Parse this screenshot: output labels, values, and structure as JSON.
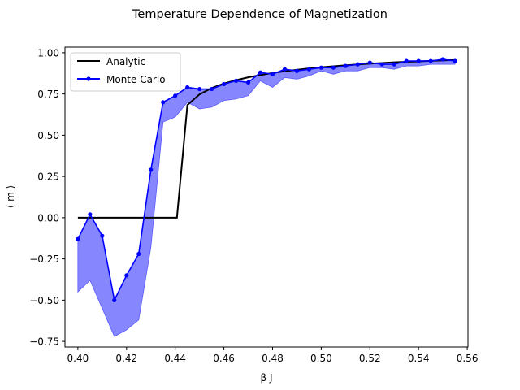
{
  "chart_data": {
    "type": "line",
    "title": "Temperature Dependence of Magnetization",
    "xlabel": "β J",
    "ylabel": "⟨ m ⟩",
    "xlim": [
      0.3947,
      0.5603
    ],
    "ylim": [
      -0.784,
      1.034
    ],
    "xticks": [
      0.4,
      0.42,
      0.44,
      0.46,
      0.48,
      0.5,
      0.52,
      0.54,
      0.56
    ],
    "xtick_labels": [
      "0.40",
      "0.42",
      "0.44",
      "0.46",
      "0.48",
      "0.50",
      "0.52",
      "0.54",
      "0.56"
    ],
    "yticks": [
      -0.75,
      -0.5,
      -0.25,
      0.0,
      0.25,
      0.5,
      0.75,
      1.0
    ],
    "ytick_labels": [
      "−0.75",
      "−0.50",
      "−0.25",
      "0.00",
      "0.25",
      "0.50",
      "0.75",
      "1.00"
    ],
    "grid": false,
    "legend": {
      "position": "top-left",
      "entries": [
        "Analytic",
        "Monte Carlo"
      ]
    },
    "colors": {
      "analytic": "#000000",
      "monte_carlo": "#0000ff",
      "band": "#8080ff"
    },
    "series": [
      {
        "name": "Analytic",
        "style": "line",
        "x": [
          0.4,
          0.4407,
          0.445,
          0.45,
          0.455,
          0.46,
          0.465,
          0.47,
          0.475,
          0.48,
          0.485,
          0.49,
          0.495,
          0.5,
          0.505,
          0.51,
          0.515,
          0.52,
          0.525,
          0.53,
          0.535,
          0.54,
          0.545,
          0.55,
          0.555
        ],
        "y": [
          0.0,
          0.0,
          0.683,
          0.748,
          0.786,
          0.813,
          0.834,
          0.851,
          0.865,
          0.877,
          0.888,
          0.897,
          0.905,
          0.912,
          0.918,
          0.924,
          0.929,
          0.934,
          0.938,
          0.942,
          0.945,
          0.948,
          0.951,
          0.954,
          0.956
        ]
      },
      {
        "name": "Monte Carlo",
        "style": "line+markers",
        "x": [
          0.4,
          0.405,
          0.41,
          0.415,
          0.42,
          0.425,
          0.43,
          0.435,
          0.44,
          0.445,
          0.45,
          0.455,
          0.46,
          0.465,
          0.47,
          0.475,
          0.48,
          0.485,
          0.49,
          0.495,
          0.5,
          0.505,
          0.51,
          0.515,
          0.52,
          0.525,
          0.53,
          0.535,
          0.54,
          0.545,
          0.55,
          0.555
        ],
        "y": [
          -0.13,
          0.02,
          -0.11,
          -0.5,
          -0.35,
          -0.22,
          0.29,
          0.7,
          0.74,
          0.79,
          0.78,
          0.78,
          0.81,
          0.83,
          0.82,
          0.88,
          0.87,
          0.9,
          0.89,
          0.9,
          0.91,
          0.91,
          0.92,
          0.93,
          0.94,
          0.93,
          0.93,
          0.95,
          0.95,
          0.95,
          0.96,
          0.95
        ]
      }
    ],
    "band": {
      "x": [
        0.4,
        0.405,
        0.41,
        0.415,
        0.42,
        0.425,
        0.43,
        0.435,
        0.44,
        0.445,
        0.45,
        0.455,
        0.46,
        0.465,
        0.47,
        0.475,
        0.48,
        0.485,
        0.49,
        0.495,
        0.5,
        0.505,
        0.51,
        0.515,
        0.52,
        0.525,
        0.53,
        0.535,
        0.54,
        0.545,
        0.55,
        0.555
      ],
      "lower": [
        -0.45,
        -0.38,
        -0.55,
        -0.72,
        -0.68,
        -0.62,
        -0.18,
        0.58,
        0.61,
        0.7,
        0.66,
        0.67,
        0.71,
        0.72,
        0.74,
        0.83,
        0.79,
        0.85,
        0.84,
        0.86,
        0.89,
        0.87,
        0.89,
        0.89,
        0.91,
        0.91,
        0.9,
        0.92,
        0.92,
        0.93,
        0.93,
        0.93
      ],
      "upper": [
        -0.13,
        0.02,
        -0.11,
        -0.5,
        -0.35,
        -0.22,
        0.29,
        0.7,
        0.74,
        0.79,
        0.78,
        0.78,
        0.81,
        0.83,
        0.82,
        0.88,
        0.87,
        0.9,
        0.89,
        0.9,
        0.91,
        0.91,
        0.92,
        0.93,
        0.94,
        0.93,
        0.93,
        0.95,
        0.95,
        0.95,
        0.96,
        0.95
      ]
    }
  }
}
